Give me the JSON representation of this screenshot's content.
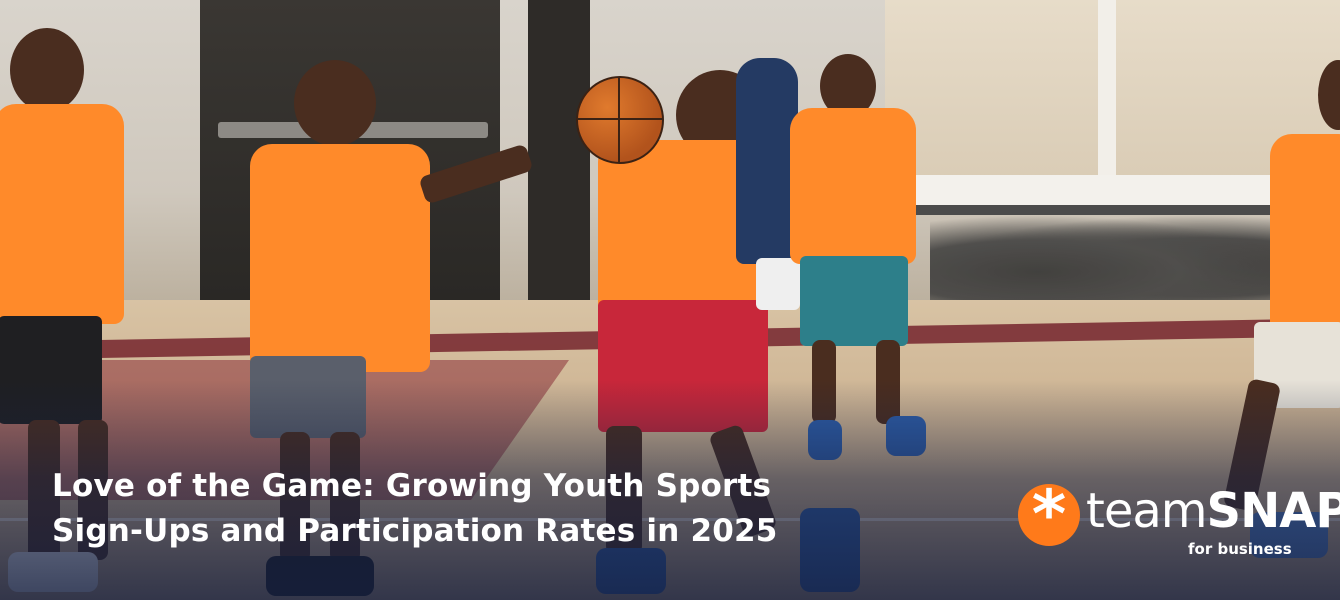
{
  "headline": {
    "line1": "Love of the Game: Growing Youth Sports",
    "line2": "Sign-Ups and Participation Rates in 2025"
  },
  "logo": {
    "word_light": "team",
    "word_bold": "SNAP",
    "tagline": "for business",
    "mark_icon": "asterisk-icon",
    "mark_color": "#ff7a1a"
  },
  "colors": {
    "jersey": "#ff8a2a",
    "headline_text": "#ffffff",
    "court_stripe": "#7a2c33"
  }
}
